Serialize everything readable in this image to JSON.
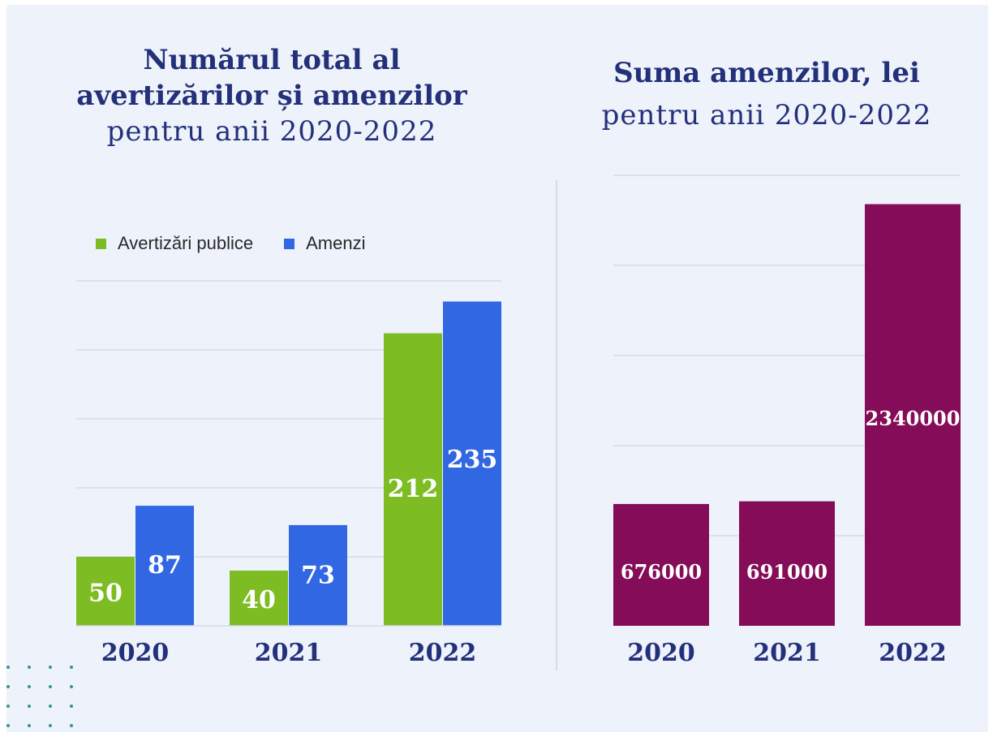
{
  "left_title": {
    "line1": "Numărul total al",
    "line2": "avertizărilor și amenzilor",
    "line3": "pentru anii 2020-2022"
  },
  "right_title": {
    "line1": "Suma amenzilor, lei",
    "line2": "pentru anii 2020-2022"
  },
  "colors": {
    "green": "#7dbd23",
    "blue": "#3267e3",
    "purple": "#840c58",
    "title": "#23307a",
    "grid": "#d5d9e4"
  },
  "chart_data": [
    {
      "type": "bar",
      "title": "Numărul total al avertizărilor și amenzilor pentru anii 2020-2022",
      "categories": [
        "2020",
        "2021",
        "2022"
      ],
      "series": [
        {
          "name": "Avertizări publice",
          "values": [
            50,
            40,
            212
          ]
        },
        {
          "name": "Amenzi",
          "values": [
            87,
            73,
            235
          ]
        }
      ],
      "ylim": [
        0,
        250
      ],
      "grid": true,
      "legend": "top-left"
    },
    {
      "type": "bar",
      "title": "Suma amenzilor, lei pentru anii 2020-2022",
      "categories": [
        "2020",
        "2021",
        "2022"
      ],
      "values": [
        676000,
        691000,
        2340000
      ],
      "ylim": [
        0,
        2500000
      ],
      "grid": true
    }
  ]
}
